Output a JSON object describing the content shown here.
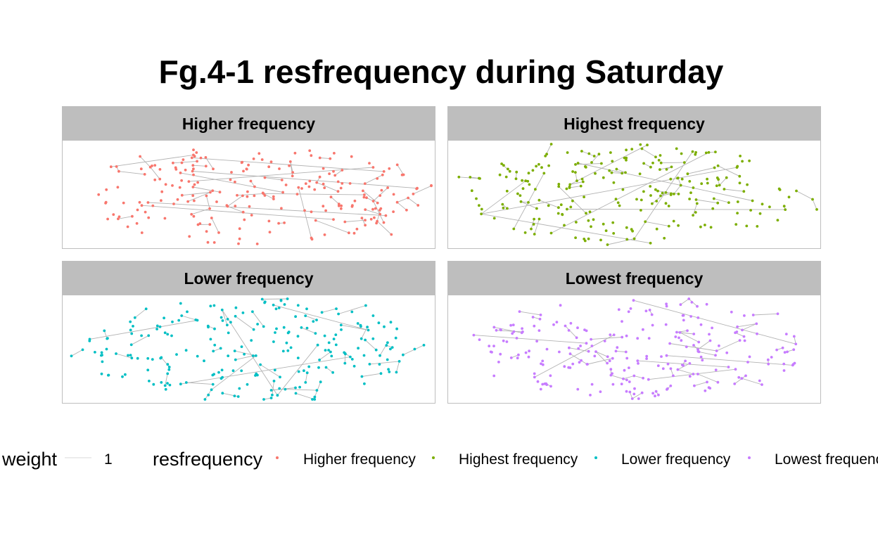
{
  "chart_data": {
    "type": "network",
    "title": "Fg.4-1 resfrequency during Saturday",
    "facets": [
      {
        "label": "Higher frequency",
        "color": "#F8766D"
      },
      {
        "label": "Highest frequency",
        "color": "#7CAE00"
      },
      {
        "label": "Lower frequency",
        "color": "#00BFC4"
      },
      {
        "label": "Lowest frequency",
        "color": "#C77CFF"
      }
    ],
    "edge_color": "#b3b3b3",
    "legend": {
      "position": "bottom",
      "weight_title": "weight",
      "weight_value": "1",
      "color_title": "resfrequency",
      "items": [
        "Higher frequency",
        "Highest frequency",
        "Lower frequency",
        "Lowest frequency"
      ]
    }
  }
}
